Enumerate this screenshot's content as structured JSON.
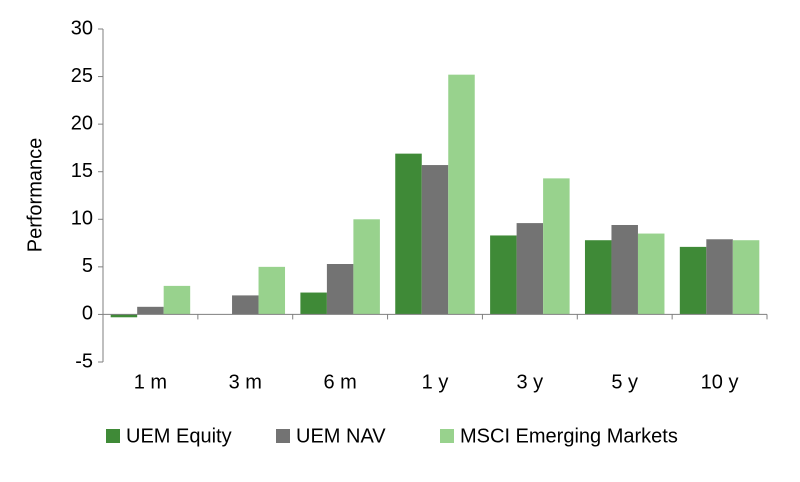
{
  "chart_data": {
    "type": "bar",
    "y_label": "Performance",
    "categories": [
      "1 m",
      "3 m",
      "6 m",
      "1 y",
      "3 y",
      "5 y",
      "10 y"
    ],
    "series": [
      {
        "name": "UEM Equity",
        "color": "#3f8a37",
        "values": [
          -0.3,
          0,
          2.3,
          16.9,
          8.3,
          7.8,
          7.1
        ]
      },
      {
        "name": "UEM NAV",
        "color": "#737373",
        "values": [
          0.8,
          2.0,
          5.3,
          15.7,
          9.6,
          9.4,
          7.9
        ]
      },
      {
        "name": "MSCI Emerging Markets",
        "color": "#98d28d",
        "values": [
          3.0,
          5.0,
          10.0,
          25.2,
          14.3,
          8.5,
          7.8
        ]
      }
    ],
    "ylim": [
      -5,
      30
    ],
    "yticks": [
      -5,
      0,
      5,
      10,
      15,
      20,
      25,
      30
    ]
  }
}
